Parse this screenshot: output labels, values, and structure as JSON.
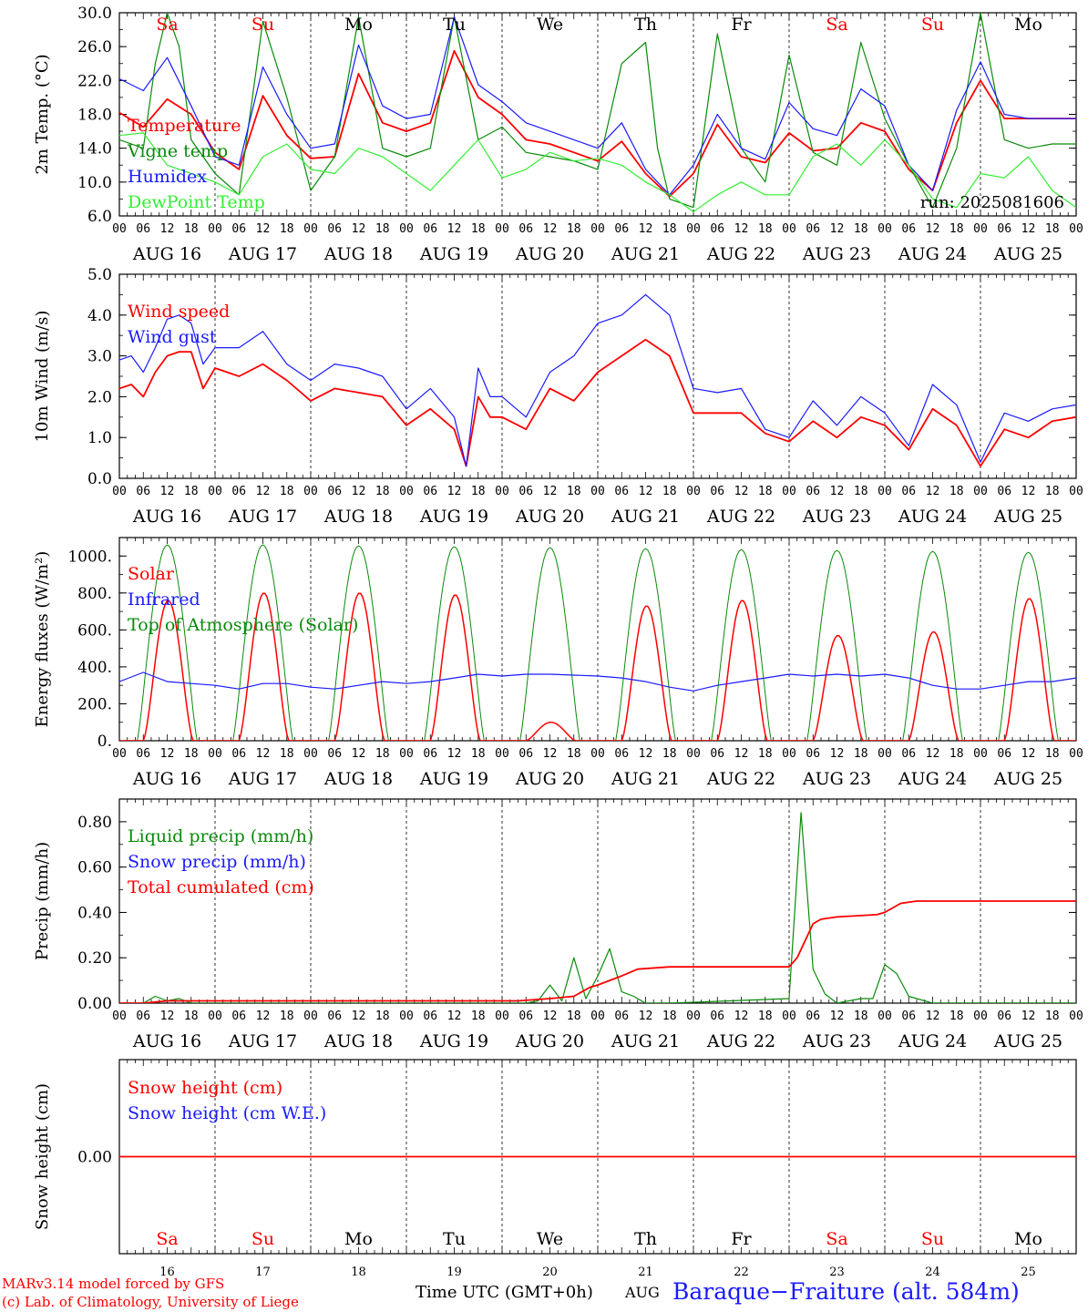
{
  "colors": {
    "red": "#ff0000",
    "green": "#0a8a0a",
    "blue": "#1a1aff",
    "lightgreen": "#33ee33",
    "weekend": "#ff0000",
    "weekday": "#000000",
    "grid": "#000000"
  },
  "days": {
    "names": [
      "Sa",
      "Su",
      "Mo",
      "Tu",
      "We",
      "Th",
      "Fr",
      "Sa",
      "Su",
      "Mo"
    ],
    "weekend": [
      true,
      true,
      false,
      false,
      false,
      false,
      false,
      true,
      true,
      false
    ],
    "dates": [
      "AUG 16",
      "AUG 17",
      "AUG 18",
      "AUG 19",
      "AUG 20",
      "AUG 21",
      "AUG 22",
      "AUG 23",
      "AUG 24",
      "AUG 25"
    ],
    "numbers": [
      "16",
      "17",
      "18",
      "19",
      "20",
      "21",
      "22",
      "23",
      "24",
      "25"
    ],
    "hours": [
      "00",
      "06",
      "12",
      "18"
    ],
    "end_hour": "00"
  },
  "chart_data": [
    {
      "type": "line",
      "ylabel": "2m Temp. (°C)",
      "ylim": [
        6,
        30
      ],
      "yticks": [
        "6.0",
        "10.0",
        "14.0",
        "18.0",
        "22.0",
        "26.0",
        "30.0"
      ],
      "annotation": "run: 2025081606",
      "legend": [
        {
          "name": "Temperature",
          "color": "red"
        },
        {
          "name": "Vigne temp",
          "color": "green"
        },
        {
          "name": "Humidex",
          "color": "blue"
        },
        {
          "name": "DewPoint Temp",
          "color": "lightgreen"
        }
      ],
      "series": [
        {
          "name": "Temperature",
          "color": "red",
          "x": [
            0,
            6,
            12,
            18,
            24,
            30,
            36,
            42,
            48,
            54,
            60,
            66,
            72,
            78,
            84,
            90,
            96,
            102,
            108,
            114,
            120,
            126,
            132,
            138,
            144,
            150,
            156,
            162,
            168,
            174,
            180,
            186,
            192,
            198,
            204,
            210,
            216,
            222,
            228,
            234,
            240
          ],
          "y": [
            18.2,
            16.5,
            19.8,
            18.0,
            13.5,
            11.5,
            20.2,
            15.5,
            12.8,
            13.0,
            22.8,
            17.0,
            16.0,
            17.0,
            25.5,
            20.0,
            18.0,
            15.0,
            14.5,
            13.5,
            12.5,
            14.8,
            11.0,
            8.3,
            11.0,
            16.8,
            13.0,
            12.3,
            15.8,
            13.7,
            14.0,
            17.0,
            16.0,
            11.5,
            9.0,
            17.0,
            22.0,
            17.5,
            17.5,
            17.5,
            17.5
          ]
        },
        {
          "name": "Vigne temp",
          "color": "green",
          "x": [
            0,
            6,
            9,
            12,
            15,
            18,
            24,
            30,
            36,
            42,
            48,
            54,
            60,
            66,
            72,
            78,
            84,
            90,
            96,
            102,
            108,
            114,
            120,
            126,
            132,
            135,
            138,
            144,
            150,
            156,
            162,
            168,
            174,
            180,
            186,
            192,
            198,
            204,
            210,
            216,
            222,
            228,
            234,
            240
          ],
          "y": [
            15.0,
            14.0,
            24.0,
            30.0,
            26.0,
            15.0,
            11.0,
            8.5,
            29.0,
            20.0,
            9.0,
            13.0,
            29.5,
            14.0,
            13.0,
            14.0,
            29.5,
            15.0,
            16.5,
            13.5,
            13.0,
            12.5,
            11.5,
            24.0,
            26.5,
            14.0,
            8.0,
            7.0,
            27.5,
            14.0,
            10.0,
            25.0,
            13.5,
            12.0,
            26.5,
            17.5,
            12.0,
            7.0,
            14.0,
            30.0,
            15.0,
            14.0,
            14.5,
            14.5
          ]
        },
        {
          "name": "Humidex",
          "color": "blue",
          "x": [
            0,
            6,
            12,
            18,
            24,
            30,
            36,
            42,
            48,
            54,
            60,
            66,
            72,
            78,
            84,
            90,
            96,
            102,
            108,
            114,
            120,
            126,
            132,
            138,
            144,
            150,
            156,
            162,
            168,
            174,
            180,
            186,
            192,
            198,
            204,
            210,
            216,
            222,
            228,
            234,
            240
          ],
          "y": [
            22.2,
            20.8,
            24.7,
            19.0,
            13.0,
            12.0,
            23.6,
            18.0,
            14.0,
            14.5,
            26.2,
            19.0,
            17.5,
            18.0,
            29.5,
            21.5,
            19.5,
            17.0,
            16.0,
            15.0,
            14.0,
            17.0,
            11.5,
            8.5,
            12.0,
            18.0,
            14.0,
            12.7,
            19.4,
            16.3,
            15.5,
            21.0,
            19.0,
            12.0,
            9.0,
            18.5,
            24.2,
            18.0,
            17.5,
            17.5,
            17.5
          ]
        },
        {
          "name": "DewPoint Temp",
          "color": "lightgreen",
          "x": [
            0,
            6,
            12,
            18,
            24,
            30,
            36,
            42,
            48,
            54,
            60,
            66,
            72,
            78,
            84,
            90,
            96,
            102,
            108,
            114,
            120,
            126,
            132,
            138,
            144,
            150,
            156,
            162,
            168,
            174,
            180,
            186,
            192,
            198,
            204,
            210,
            216,
            222,
            228,
            234,
            240
          ],
          "y": [
            15.5,
            15.8,
            12.0,
            11.0,
            10.0,
            8.5,
            13.0,
            14.5,
            11.5,
            11.0,
            14.0,
            13.0,
            11.0,
            9.0,
            12.0,
            15.0,
            10.5,
            11.5,
            13.5,
            12.5,
            12.8,
            12.0,
            10.0,
            8.5,
            6.5,
            8.5,
            10.0,
            8.5,
            8.5,
            13.0,
            14.5,
            12.0,
            15.0,
            12.0,
            8.0,
            7.0,
            11.0,
            10.5,
            13.0,
            9.0,
            7.0
          ]
        }
      ]
    },
    {
      "type": "line",
      "ylabel": "10m Wind (m/s)",
      "ylim": [
        0,
        5
      ],
      "yticks": [
        "0.0",
        "1.0",
        "2.0",
        "3.0",
        "4.0",
        "5.0"
      ],
      "legend": [
        {
          "name": "Wind speed",
          "color": "red"
        },
        {
          "name": "Wind gust",
          "color": "blue"
        }
      ],
      "series": [
        {
          "name": "Wind speed",
          "color": "red",
          "x": [
            0,
            3,
            6,
            9,
            12,
            15,
            18,
            21,
            24,
            30,
            36,
            42,
            48,
            54,
            60,
            66,
            72,
            78,
            84,
            87,
            90,
            93,
            96,
            102,
            108,
            114,
            120,
            126,
            132,
            138,
            144,
            150,
            156,
            162,
            168,
            174,
            180,
            186,
            192,
            198,
            204,
            210,
            216,
            222,
            228,
            234,
            240
          ],
          "y": [
            2.2,
            2.3,
            2.0,
            2.6,
            3.0,
            3.1,
            3.1,
            2.2,
            2.7,
            2.5,
            2.8,
            2.4,
            1.9,
            2.2,
            2.1,
            2.0,
            1.3,
            1.7,
            1.2,
            0.3,
            2.0,
            1.5,
            1.5,
            1.2,
            2.2,
            1.9,
            2.6,
            3.0,
            3.4,
            3.0,
            1.6,
            1.6,
            1.6,
            1.1,
            0.9,
            1.4,
            1.0,
            1.5,
            1.3,
            0.7,
            1.7,
            1.3,
            0.3,
            1.2,
            1.0,
            1.4,
            1.5
          ]
        },
        {
          "name": "Wind gust",
          "color": "blue",
          "x": [
            0,
            3,
            6,
            9,
            12,
            15,
            18,
            21,
            24,
            30,
            36,
            42,
            48,
            54,
            60,
            66,
            72,
            78,
            84,
            87,
            90,
            93,
            96,
            102,
            108,
            114,
            120,
            126,
            132,
            138,
            144,
            150,
            156,
            162,
            168,
            174,
            180,
            186,
            192,
            198,
            204,
            210,
            216,
            222,
            228,
            234,
            240
          ],
          "y": [
            2.9,
            3.0,
            2.6,
            3.2,
            3.9,
            4.0,
            3.8,
            2.8,
            3.2,
            3.2,
            3.6,
            2.8,
            2.4,
            2.8,
            2.7,
            2.5,
            1.7,
            2.2,
            1.5,
            0.3,
            2.7,
            2.0,
            2.0,
            1.5,
            2.6,
            3.0,
            3.8,
            4.0,
            4.5,
            4.0,
            2.2,
            2.1,
            2.2,
            1.2,
            1.0,
            1.9,
            1.3,
            2.0,
            1.6,
            0.8,
            2.3,
            1.8,
            0.4,
            1.6,
            1.4,
            1.7,
            1.8
          ]
        }
      ]
    },
    {
      "type": "line",
      "ylabel": "Energy fluxes (W/m²)",
      "ylim": [
        0,
        1100
      ],
      "yticks": [
        "0.",
        "200.",
        "400.",
        "600.",
        "800.",
        "1000."
      ],
      "legend": [
        {
          "name": "Solar",
          "color": "red"
        },
        {
          "name": "Infrared",
          "color": "blue"
        },
        {
          "name": "Top of Atmosphere (Solar)",
          "color": "green"
        }
      ],
      "toa_peak": [
        1060,
        1060,
        1055,
        1050,
        1045,
        1040,
        1035,
        1030,
        1025,
        1020
      ],
      "solar_peak": [
        760,
        800,
        800,
        790,
        100,
        730,
        760,
        570,
        590,
        770
      ],
      "series": [
        {
          "name": "Infrared",
          "color": "blue",
          "x": [
            0,
            6,
            12,
            18,
            24,
            30,
            36,
            42,
            48,
            54,
            60,
            66,
            72,
            78,
            84,
            90,
            96,
            102,
            108,
            114,
            120,
            126,
            132,
            138,
            144,
            150,
            156,
            162,
            168,
            174,
            180,
            186,
            192,
            198,
            204,
            210,
            216,
            222,
            228,
            234,
            240
          ],
          "y": [
            320,
            370,
            320,
            310,
            300,
            280,
            310,
            310,
            290,
            280,
            300,
            320,
            310,
            320,
            340,
            360,
            350,
            360,
            360,
            355,
            350,
            340,
            320,
            290,
            270,
            300,
            320,
            340,
            360,
            350,
            360,
            350,
            360,
            340,
            300,
            280,
            280,
            300,
            320,
            320,
            340
          ]
        }
      ]
    },
    {
      "type": "line",
      "ylabel": "Precip (mm/h)",
      "ylim": [
        0,
        0.9
      ],
      "yticks": [
        "0.00",
        "0.20",
        "0.40",
        "0.60",
        "0.80"
      ],
      "legend": [
        {
          "name": "Liquid precip (mm/h)",
          "color": "green"
        },
        {
          "name": "Snow precip (mm/h)",
          "color": "blue"
        },
        {
          "name": "Total cumulated (cm)",
          "color": "red"
        }
      ],
      "series": [
        {
          "name": "Liquid precip (mm/h)",
          "color": "green",
          "x": [
            0,
            6,
            9,
            12,
            15,
            18,
            24,
            102,
            105,
            108,
            111,
            114,
            117,
            120,
            123,
            126,
            129,
            132,
            138,
            168,
            171,
            174,
            177,
            180,
            186,
            189,
            192,
            195,
            198,
            202,
            204,
            210,
            240
          ],
          "y": [
            0,
            0,
            0.03,
            0.01,
            0.02,
            0,
            0,
            0,
            0.01,
            0.08,
            0.01,
            0.2,
            0.02,
            0.12,
            0.24,
            0.05,
            0.03,
            0,
            0,
            0.02,
            0.84,
            0.15,
            0.04,
            0,
            0.02,
            0.02,
            0.17,
            0.13,
            0.03,
            0.01,
            0,
            0,
            0
          ]
        },
        {
          "name": "Total cumulated (cm)",
          "color": "red",
          "x": [
            0,
            6,
            12,
            18,
            100,
            108,
            114,
            118,
            120,
            126,
            130,
            138,
            168,
            170,
            174,
            176,
            180,
            190,
            192,
            196,
            200,
            210,
            240
          ],
          "y": [
            0,
            0,
            0.01,
            0.01,
            0.01,
            0.02,
            0.03,
            0.07,
            0.08,
            0.12,
            0.15,
            0.16,
            0.16,
            0.2,
            0.35,
            0.37,
            0.38,
            0.39,
            0.4,
            0.44,
            0.45,
            0.45,
            0.45
          ]
        }
      ]
    },
    {
      "type": "line",
      "ylabel": "Snow height (cm)",
      "yticks": [
        "0.00"
      ],
      "legend": [
        {
          "name": "Snow height (cm)",
          "color": "red"
        },
        {
          "name": "Snow height (cm W.E.)",
          "color": "blue"
        }
      ],
      "series": [
        {
          "name": "Snow height (cm)",
          "color": "red",
          "x": [
            0,
            240
          ],
          "y": [
            0,
            0
          ]
        }
      ]
    }
  ],
  "footer": {
    "model": "MARv3.14 model forced by GFS",
    "credit": "(c) Lab. of Climatology, University of Liege",
    "time_axis": "Time UTC (GMT+0h)",
    "month": "AUG",
    "station": "Baraque−Fraiture (alt. 584m)"
  }
}
